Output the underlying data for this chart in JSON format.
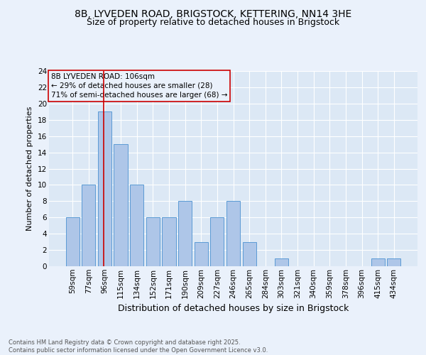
{
  "title_line1": "8B, LYVEDEN ROAD, BRIGSTOCK, KETTERING, NN14 3HE",
  "title_line2": "Size of property relative to detached houses in Brigstock",
  "xlabel": "Distribution of detached houses by size in Brigstock",
  "ylabel": "Number of detached properties",
  "categories": [
    "59sqm",
    "77sqm",
    "96sqm",
    "115sqm",
    "134sqm",
    "152sqm",
    "171sqm",
    "190sqm",
    "209sqm",
    "227sqm",
    "246sqm",
    "265sqm",
    "284sqm",
    "303sqm",
    "321sqm",
    "340sqm",
    "359sqm",
    "378sqm",
    "396sqm",
    "415sqm",
    "434sqm"
  ],
  "values": [
    6,
    10,
    19,
    15,
    10,
    6,
    6,
    8,
    3,
    6,
    8,
    3,
    0,
    1,
    0,
    0,
    0,
    0,
    0,
    1,
    1
  ],
  "bar_color": "#aec6e8",
  "bar_edge_color": "#5b9bd5",
  "vline_x_index": 2,
  "vline_color": "#cc0000",
  "annotation_box_text": "8B LYVEDEN ROAD: 106sqm\n← 29% of detached houses are smaller (28)\n71% of semi-detached houses are larger (68) →",
  "annotation_fontsize": 7.5,
  "box_edge_color": "#cc0000",
  "ylim": [
    0,
    24
  ],
  "yticks": [
    0,
    2,
    4,
    6,
    8,
    10,
    12,
    14,
    16,
    18,
    20,
    22,
    24
  ],
  "bg_color": "#eaf1fb",
  "plot_bg_color": "#dce8f5",
  "grid_color": "#ffffff",
  "footer_text": "Contains HM Land Registry data © Crown copyright and database right 2025.\nContains public sector information licensed under the Open Government Licence v3.0.",
  "title_fontsize": 10,
  "subtitle_fontsize": 9,
  "xlabel_fontsize": 9,
  "ylabel_fontsize": 8,
  "tick_fontsize": 7.5
}
